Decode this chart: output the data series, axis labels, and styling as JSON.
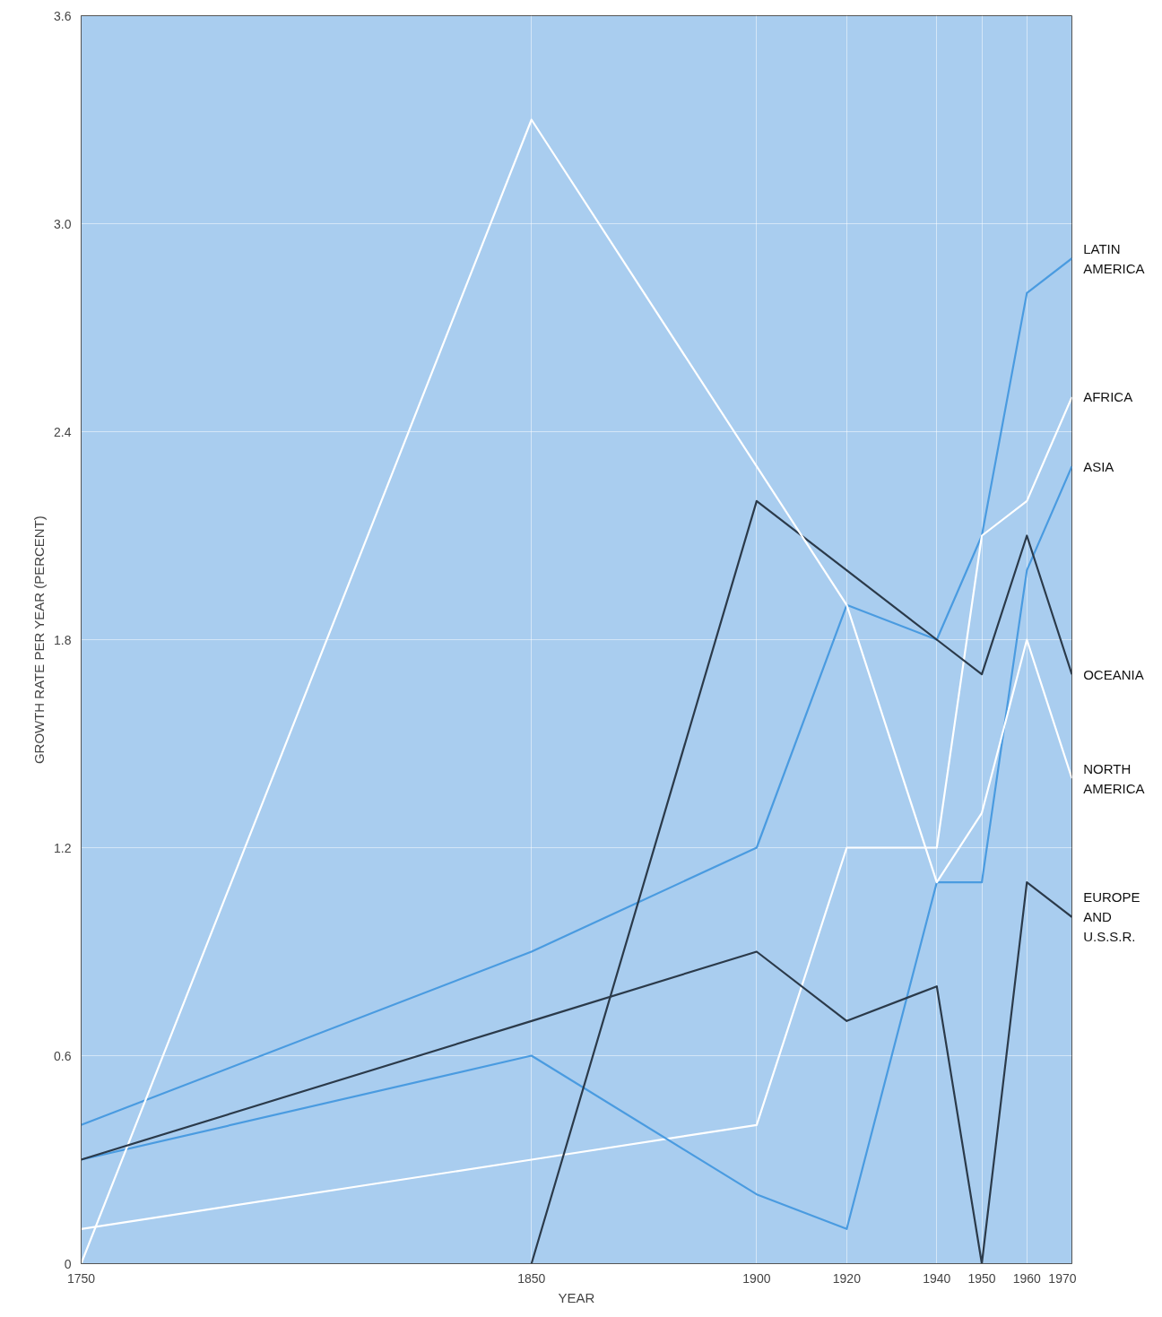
{
  "chart_data": {
    "type": "line",
    "xlabel": "YEAR",
    "ylabel": "GROWTH RATE PER YEAR (PERCENT)",
    "x": [
      1750,
      1850,
      1900,
      1920,
      1940,
      1950,
      1960,
      1970
    ],
    "xlim": [
      1750,
      1970
    ],
    "xticks": [
      1750,
      1850,
      1900,
      1920,
      1940,
      1950,
      1960,
      1970
    ],
    "ylim": [
      0,
      3.6
    ],
    "yticks": [
      0,
      0.6,
      1.2,
      1.8,
      2.4,
      {
        "value": 3,
        "label": "3.0"
      },
      3.6
    ],
    "grid": true,
    "marker": "none",
    "line_style": "solid",
    "series": [
      {
        "name": "LATIN AMERICA",
        "color": "#4a9be0",
        "values": [
          0.4,
          0.9,
          1.2,
          1.9,
          1.8,
          2.1,
          2.8,
          2.9
        ]
      },
      {
        "name": "AFRICA",
        "color": "#ffffff",
        "values": [
          0.1,
          0.3,
          0.4,
          1.2,
          1.2,
          2.1,
          2.2,
          2.5
        ]
      },
      {
        "name": "ASIA",
        "color": "#4a9be0",
        "values": [
          0.3,
          0.6,
          0.2,
          0.1,
          1.1,
          1.1,
          2.0,
          2.3
        ]
      },
      {
        "name": "OCEANIA",
        "color": "#2b3a4a",
        "values": [
          null,
          0,
          2.2,
          2.0,
          1.8,
          1.7,
          2.1,
          1.7
        ]
      },
      {
        "name": "NORTH AMERICA",
        "color": "#ffffff",
        "values": [
          0,
          3.3,
          2.3,
          1.9,
          1.1,
          1.3,
          1.8,
          1.4
        ]
      },
      {
        "name": "EUROPE AND U.S.S.R.",
        "color": "#2b3a4a",
        "values": [
          0.3,
          0.7,
          0.9,
          0.7,
          0.8,
          0,
          1.1,
          1.0
        ]
      }
    ]
  }
}
